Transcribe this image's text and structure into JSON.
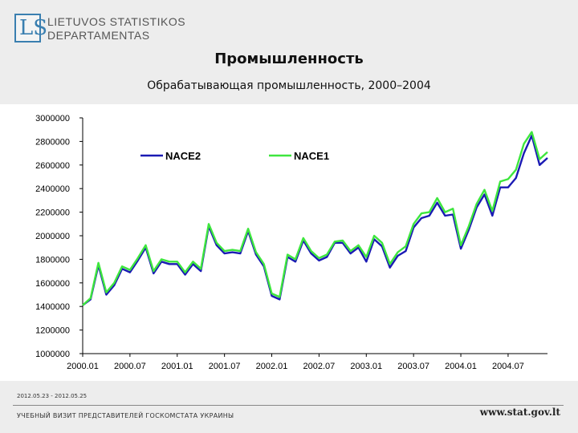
{
  "logo": {
    "line1": "LIETUVOS STATISTIKOS",
    "line2": "DEPARTAMENTAS",
    "mark": "LS"
  },
  "title": "Промышленность",
  "subtitle": "Обрабатывающая промышленность, 2000–2004",
  "footer": {
    "dates": "2012.05.23 - 2012.05.25",
    "organization": "УЧЕБНЫЙ ВИЗИТ ПРЕДСТАВИТЕЛЕЙ ГОСКОМСТАТА УКРАИНЫ",
    "url": "www.stat.gov.lt"
  },
  "colors": {
    "nace2": "#1a1ab4",
    "nace1": "#3ee63e"
  },
  "chart_data": {
    "type": "line",
    "title": "",
    "xlabel": "",
    "ylabel": "",
    "ylim": [
      1000000,
      3000000
    ],
    "yticks": [
      3000000,
      2800000,
      2600000,
      2400000,
      2200000,
      2000000,
      1800000,
      1600000,
      1400000,
      1200000,
      1000000
    ],
    "ytick_labels": [
      "3000000",
      "2800000",
      "2600000",
      "2400000",
      "2200000",
      "2000000",
      "1800000",
      "1600000",
      "1400000",
      "1200000",
      "1000000"
    ],
    "xtick_labels": [
      "2000.01",
      "2000.07",
      "2001.01",
      "2001.07",
      "2002.01",
      "2002.07",
      "2003.01",
      "2003.07",
      "2004.01",
      "2004.07"
    ],
    "legend_position": "top",
    "grid": false,
    "series": [
      {
        "name": "NACE2",
        "color": "#1a1ab4",
        "values": [
          1410000,
          1460000,
          1750000,
          1500000,
          1580000,
          1720000,
          1690000,
          1790000,
          1900000,
          1680000,
          1780000,
          1760000,
          1760000,
          1670000,
          1760000,
          1700000,
          2080000,
          1920000,
          1850000,
          1860000,
          1850000,
          2040000,
          1840000,
          1740000,
          1490000,
          1460000,
          1820000,
          1780000,
          1960000,
          1850000,
          1790000,
          1820000,
          1940000,
          1940000,
          1850000,
          1900000,
          1780000,
          1970000,
          1910000,
          1730000,
          1830000,
          1870000,
          2070000,
          2150000,
          2170000,
          2280000,
          2170000,
          2180000,
          1890000,
          2050000,
          2240000,
          2350000,
          2170000,
          2410000,
          2410000,
          2490000,
          2700000,
          2850000,
          2600000,
          2660000
        ]
      },
      {
        "name": "NACE1",
        "color": "#3ee63e",
        "values": [
          1410000,
          1470000,
          1770000,
          1520000,
          1600000,
          1740000,
          1710000,
          1810000,
          1920000,
          1700000,
          1800000,
          1780000,
          1780000,
          1690000,
          1780000,
          1720000,
          2100000,
          1940000,
          1870000,
          1880000,
          1870000,
          2060000,
          1860000,
          1760000,
          1510000,
          1480000,
          1840000,
          1800000,
          1980000,
          1870000,
          1810000,
          1840000,
          1950000,
          1960000,
          1870000,
          1920000,
          1820000,
          2000000,
          1940000,
          1760000,
          1860000,
          1910000,
          2100000,
          2190000,
          2200000,
          2320000,
          2200000,
          2230000,
          1920000,
          2080000,
          2270000,
          2390000,
          2210000,
          2460000,
          2480000,
          2560000,
          2780000,
          2880000,
          2650000,
          2710000
        ]
      }
    ]
  }
}
